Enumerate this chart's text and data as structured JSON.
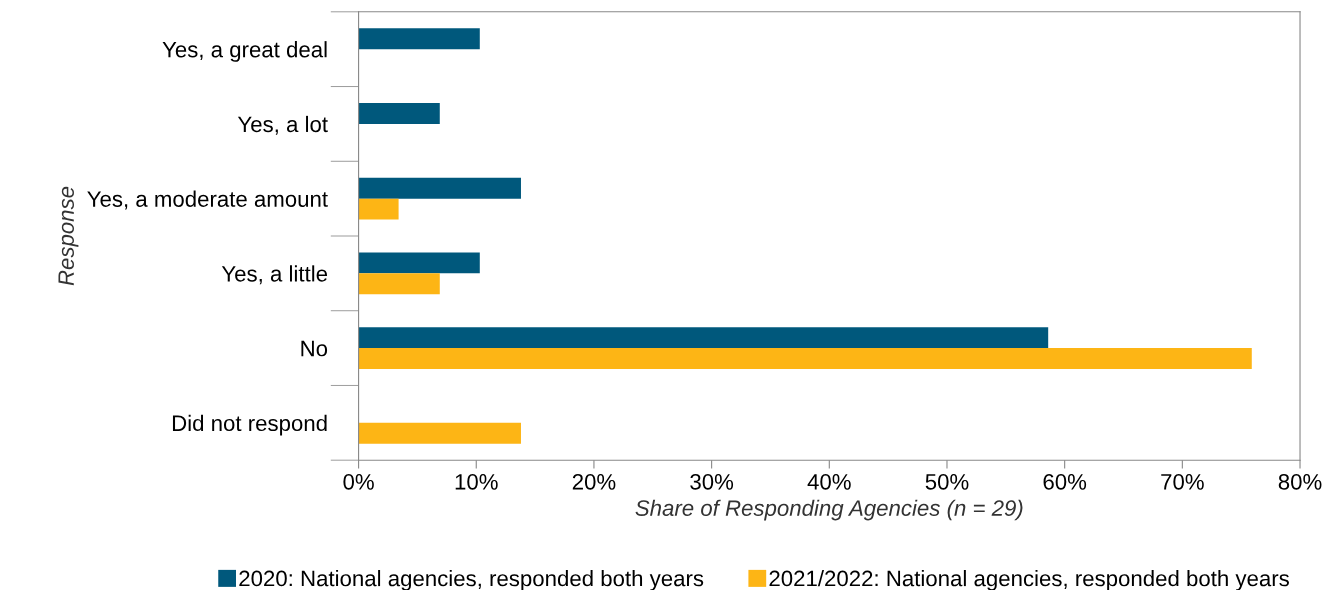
{
  "chart_data": {
    "type": "bar",
    "orientation": "horizontal",
    "categories": [
      "Yes, a great deal",
      "Yes, a lot",
      "Yes, a moderate amount",
      "Yes, a little",
      "No",
      "Did not respond"
    ],
    "series": [
      {
        "name": "2020: National agencies, responded both years",
        "color": "#00587c",
        "values": [
          10.3,
          6.9,
          13.8,
          10.3,
          58.6,
          null
        ]
      },
      {
        "name": "2021/2022: National agencies, responded both years",
        "color": "#fdb515",
        "values": [
          null,
          null,
          3.4,
          6.9,
          75.9,
          13.8
        ]
      }
    ],
    "xlim": [
      0,
      80
    ],
    "xticks": [
      {
        "value": 0,
        "label": "0%"
      },
      {
        "value": 10,
        "label": "10%"
      },
      {
        "value": 20,
        "label": "20%"
      },
      {
        "value": 30,
        "label": "30%"
      },
      {
        "value": 40,
        "label": "40%"
      },
      {
        "value": 50,
        "label": "50%"
      },
      {
        "value": 60,
        "label": "60%"
      },
      {
        "value": 70,
        "label": "70%"
      },
      {
        "value": 80,
        "label": "80%"
      }
    ],
    "xlabel": "Share of Responding Agencies (n = 29)",
    "ylabel": "Response",
    "grid": false,
    "legend": "bottom"
  }
}
